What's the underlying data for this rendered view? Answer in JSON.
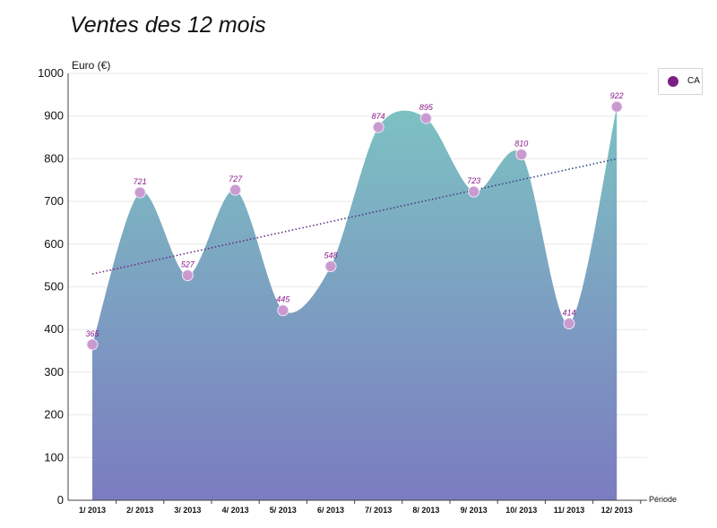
{
  "chart_data": {
    "type": "area",
    "title": "Ventes des 12 mois",
    "xlabel": "Période",
    "ylabel": "Euro (€)",
    "ylim": [
      0,
      1000
    ],
    "yticks": [
      0,
      100,
      200,
      300,
      400,
      500,
      600,
      700,
      800,
      900,
      1000
    ],
    "grid": true,
    "legend_position": "top-right",
    "categories": [
      "1/ 2013",
      "2/ 2013",
      "3/ 2013",
      "4/ 2013",
      "5/ 2013",
      "6/ 2013",
      "7/ 2013",
      "8/ 2013",
      "9/ 2013",
      "10/ 2013",
      "11/ 2013",
      "12/ 2013"
    ],
    "series": [
      {
        "name": "CA",
        "values": [
          365,
          721,
          527,
          727,
          445,
          548,
          874,
          895,
          723,
          810,
          414,
          922
        ]
      }
    ],
    "trendline": {
      "style": "dotted",
      "start": 530,
      "end": 800
    },
    "colors": {
      "area_top": "#7cc2c2",
      "area_bottom": "#7b7cc0",
      "marker": "#c99ad0",
      "data_label": "#8b1a8b",
      "legend_marker": "#7b1f86",
      "trendline_start": "#7b1f86",
      "trendline_end": "#2c4a82",
      "grid": "#e8e8e8"
    }
  }
}
